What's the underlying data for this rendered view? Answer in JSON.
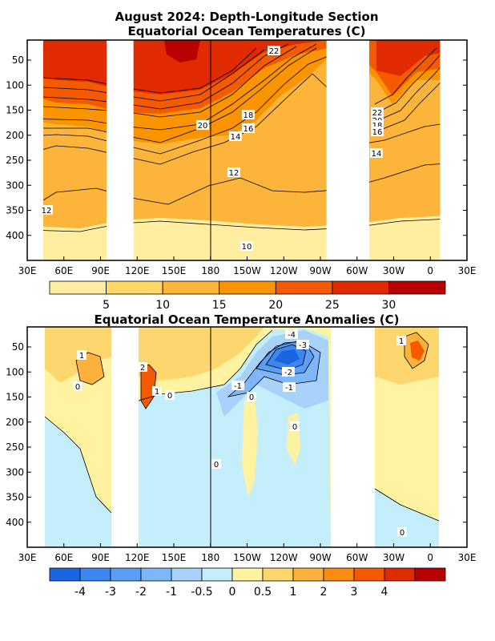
{
  "chart_data": [
    {
      "type": "heatmap",
      "title": "August 2024: Depth-Longitude Section",
      "subtitle": "Equatorial Ocean Temperatures (C)",
      "x_ticks": [
        "30E",
        "60E",
        "90E",
        "120E",
        "150E",
        "180",
        "150W",
        "120W",
        "90W",
        "60W",
        "30W",
        "0",
        "30E"
      ],
      "y_ticks": [
        "50",
        "100",
        "150",
        "200",
        "250",
        "300",
        "350",
        "400"
      ],
      "xlim_deg_east": [
        30,
        390
      ],
      "ylim_depth_m": [
        450,
        10
      ],
      "no_data_bands_deg_east": [
        [
          95,
          117
        ],
        [
          275,
          310
        ],
        [
          368,
          390
        ]
      ],
      "contour_labels": [
        "22",
        "20",
        "18",
        "16",
        "14",
        "12",
        "10",
        "22",
        "20",
        "18",
        "16",
        "14",
        "12"
      ],
      "colorbar": {
        "tick_labels": [
          "5",
          "10",
          "15",
          "20",
          "25",
          "30"
        ],
        "colors": [
          "#ffeea0",
          "#ffd865",
          "#fcb53a",
          "#fa9400",
          "#f45a00",
          "#e02a00",
          "#b80000"
        ]
      },
      "depth_profile_c": [
        {
          "depth": 50,
          "t": 28
        },
        {
          "depth": 100,
          "t": 26
        },
        {
          "depth": 150,
          "t": 21
        },
        {
          "depth": 200,
          "t": 16
        },
        {
          "depth": 250,
          "t": 14
        },
        {
          "depth": 300,
          "t": 12
        },
        {
          "depth": 350,
          "t": 11
        },
        {
          "depth": 400,
          "t": 10
        }
      ]
    },
    {
      "type": "heatmap",
      "title": "Equatorial Ocean Temperature Anomalies (C)",
      "x_ticks": [
        "30E",
        "60E",
        "90E",
        "120E",
        "150E",
        "180",
        "150W",
        "120W",
        "90W",
        "60W",
        "30W",
        "0",
        "30E"
      ],
      "y_ticks": [
        "50",
        "100",
        "150",
        "200",
        "250",
        "300",
        "350",
        "400"
      ],
      "xlim_deg_east": [
        30,
        390
      ],
      "ylim_depth_m": [
        450,
        10
      ],
      "no_data_bands_deg_east": [
        [
          95,
          117
        ],
        [
          275,
          310
        ],
        [
          368,
          390
        ]
      ],
      "contour_labels": [
        "1",
        "0",
        "2",
        "1",
        "0",
        "-1",
        "0",
        "-4",
        "-3",
        "-2",
        "-1",
        "0",
        "0",
        "1",
        "0"
      ],
      "colorbar": {
        "tick_labels": [
          "-4",
          "-3",
          "-2",
          "-1",
          "-0.5",
          "0",
          "0.5",
          "1",
          "2",
          "3",
          "4"
        ],
        "colors": [
          "#1a66e0",
          "#3d86f0",
          "#5b9ef5",
          "#7fb6f7",
          "#a8d2fa",
          "#c5eefb",
          "#fff2a0",
          "#fdd66e",
          "#fcb23c",
          "#fa8c10",
          "#f45a00",
          "#e02a00",
          "#b80000"
        ]
      },
      "minimum_anomaly_c": -4,
      "maximum_anomaly_c": 3
    }
  ]
}
